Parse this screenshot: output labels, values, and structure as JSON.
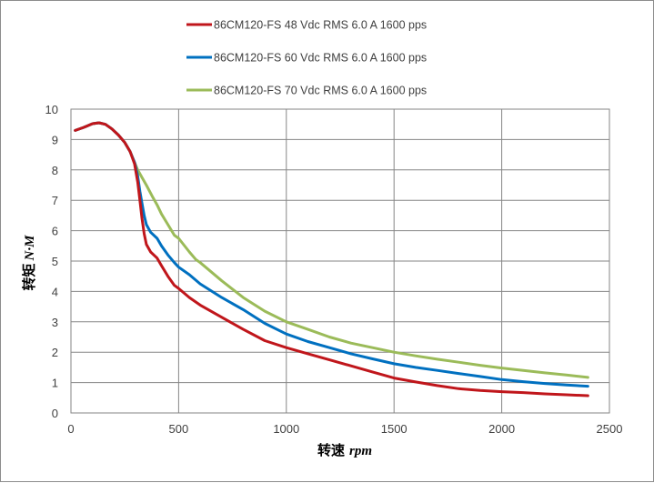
{
  "chart_data": {
    "type": "line",
    "title": "",
    "xlabel": "转速",
    "xlabel_unit": "rpm",
    "ylabel": "转矩",
    "ylabel_unit": "N·M",
    "xlim": [
      0,
      2500
    ],
    "ylim": [
      0,
      10
    ],
    "x_ticks": [
      0,
      500,
      1000,
      1500,
      2000,
      2500
    ],
    "y_ticks": [
      0,
      1,
      2,
      3,
      4,
      5,
      6,
      7,
      8,
      9,
      10
    ],
    "x_tick_labels": [
      "0",
      "500",
      "1000",
      "1500",
      "2000",
      "2500"
    ],
    "y_tick_labels": [
      "0",
      "1",
      "2",
      "3",
      "4",
      "5",
      "6",
      "7",
      "8",
      "9",
      "10"
    ],
    "grid": true,
    "legend_position": "top-center",
    "series": [
      {
        "name": "86CM120-FS 48 Vdc  RMS  6.0 A  1600 pps",
        "color": "#c0161b",
        "x": [
          20,
          60,
          100,
          130,
          160,
          190,
          220,
          250,
          275,
          295,
          310,
          320,
          330,
          340,
          350,
          370,
          400,
          420,
          450,
          480,
          500,
          550,
          600,
          700,
          800,
          900,
          1000,
          1100,
          1200,
          1300,
          1400,
          1500,
          1600,
          1700,
          1800,
          1900,
          2000,
          2100,
          2200,
          2300,
          2400
        ],
        "y": [
          9.3,
          9.4,
          9.52,
          9.55,
          9.5,
          9.35,
          9.15,
          8.9,
          8.6,
          8.2,
          7.6,
          7.0,
          6.4,
          5.9,
          5.55,
          5.3,
          5.1,
          4.85,
          4.5,
          4.2,
          4.1,
          3.8,
          3.55,
          3.15,
          2.75,
          2.38,
          2.15,
          1.95,
          1.75,
          1.55,
          1.35,
          1.15,
          1.02,
          0.9,
          0.8,
          0.74,
          0.7,
          0.67,
          0.63,
          0.6,
          0.57
        ]
      },
      {
        "name": "86CM120-FS 60 Vdc  RMS  6.0 A  1600 pps",
        "color": "#0070c0",
        "x": [
          20,
          60,
          100,
          130,
          160,
          190,
          220,
          250,
          275,
          295,
          310,
          320,
          330,
          340,
          350,
          370,
          400,
          420,
          450,
          480,
          500,
          550,
          600,
          700,
          800,
          900,
          1000,
          1100,
          1200,
          1300,
          1400,
          1500,
          1600,
          1700,
          1800,
          1900,
          2000,
          2100,
          2200,
          2300,
          2400
        ],
        "y": [
          9.3,
          9.4,
          9.52,
          9.55,
          9.5,
          9.35,
          9.15,
          8.9,
          8.6,
          8.25,
          7.8,
          7.3,
          6.9,
          6.5,
          6.2,
          5.95,
          5.75,
          5.5,
          5.2,
          4.95,
          4.8,
          4.55,
          4.25,
          3.8,
          3.4,
          2.95,
          2.6,
          2.35,
          2.15,
          1.95,
          1.78,
          1.62,
          1.5,
          1.4,
          1.3,
          1.2,
          1.1,
          1.03,
          0.97,
          0.92,
          0.88
        ]
      },
      {
        "name": "86CM120-FS 70 Vdc  RMS  6.0 A  1600 pps",
        "color": "#9bbb59",
        "x": [
          20,
          60,
          100,
          130,
          160,
          190,
          220,
          250,
          275,
          295,
          310,
          330,
          350,
          380,
          400,
          420,
          450,
          480,
          500,
          550,
          580,
          600,
          700,
          800,
          900,
          1000,
          1100,
          1200,
          1300,
          1400,
          1500,
          1600,
          1700,
          1800,
          1900,
          2000,
          2100,
          2200,
          2300,
          2400
        ],
        "y": [
          9.3,
          9.4,
          9.52,
          9.55,
          9.5,
          9.35,
          9.15,
          8.9,
          8.6,
          8.25,
          8.0,
          7.75,
          7.5,
          7.1,
          6.85,
          6.55,
          6.2,
          5.85,
          5.75,
          5.3,
          5.05,
          4.95,
          4.35,
          3.8,
          3.35,
          3.0,
          2.75,
          2.5,
          2.3,
          2.15,
          2.0,
          1.88,
          1.77,
          1.67,
          1.57,
          1.48,
          1.4,
          1.32,
          1.25,
          1.17
        ]
      }
    ]
  }
}
